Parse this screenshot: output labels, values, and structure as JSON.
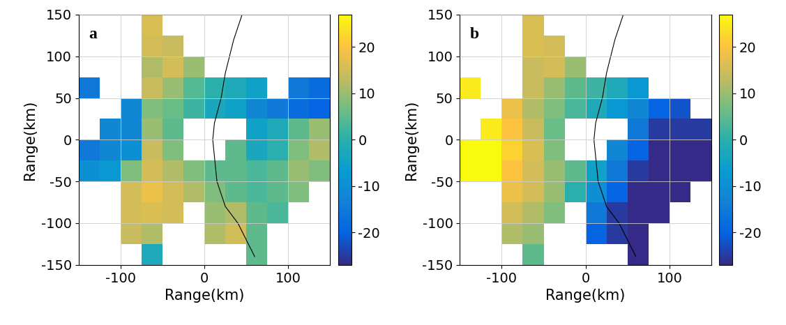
{
  "chart_data": [
    {
      "type": "heatmap",
      "title": "a",
      "xlabel": "Range(km)",
      "ylabel": "Range(km)",
      "xlim": [
        -150,
        150
      ],
      "xticks": [
        -100,
        0,
        100
      ],
      "ylim": [
        -150,
        150
      ],
      "yticks": [
        -150,
        -100,
        -50,
        0,
        50,
        100,
        150
      ],
      "grid": true,
      "x_edges": [
        -150,
        -125,
        -100,
        -75,
        -50,
        -25,
        0,
        25,
        50,
        75,
        100,
        125,
        150
      ],
      "y_edges": [
        150,
        125,
        100,
        75,
        50,
        25,
        0,
        -25,
        -50,
        -75,
        -100,
        -125,
        -150
      ],
      "cells": [
        [
          null,
          null,
          null,
          16,
          null,
          null,
          null,
          null,
          null,
          null,
          null,
          null
        ],
        [
          null,
          null,
          null,
          15,
          14,
          null,
          null,
          null,
          null,
          null,
          null,
          null
        ],
        [
          null,
          null,
          null,
          12,
          15,
          10,
          null,
          null,
          null,
          null,
          null,
          null
        ],
        [
          -15,
          null,
          null,
          14,
          10,
          4,
          0,
          -2,
          -5,
          null,
          -15,
          -18
        ],
        [
          null,
          null,
          -12,
          8,
          6,
          2,
          -3,
          -5,
          -12,
          -15,
          -18,
          -20
        ],
        [
          null,
          -12,
          -12,
          10,
          5,
          null,
          null,
          null,
          -5,
          -2,
          5,
          10
        ],
        [
          -15,
          -12,
          -10,
          14,
          8,
          null,
          null,
          5,
          -3,
          0,
          8,
          12
        ],
        [
          -10,
          -8,
          8,
          15,
          12,
          8,
          5,
          5,
          3,
          5,
          10,
          8
        ],
        [
          null,
          null,
          15,
          18,
          15,
          12,
          8,
          5,
          3,
          5,
          8,
          null
        ],
        [
          null,
          null,
          15,
          16,
          15,
          null,
          10,
          12,
          5,
          3,
          null,
          null
        ],
        [
          null,
          null,
          14,
          12,
          null,
          null,
          12,
          15,
          5,
          null,
          null,
          null
        ],
        [
          null,
          null,
          null,
          -2,
          null,
          null,
          null,
          null,
          5,
          null,
          null,
          null
        ]
      ],
      "colorbar": {
        "range": [
          -27,
          27
        ],
        "ticks": [
          -20,
          -10,
          0,
          10,
          20
        ]
      },
      "coastline": {
        "x": [
          45,
          35,
          25,
          20,
          12,
          10,
          12,
          15,
          25,
          40,
          50,
          60
        ],
        "y": [
          150,
          120,
          80,
          50,
          20,
          0,
          -20,
          -50,
          -80,
          -100,
          -120,
          -140
        ]
      }
    },
    {
      "type": "heatmap",
      "title": "b",
      "xlabel": "Range(km)",
      "ylabel": "Range(km)",
      "xlim": [
        -150,
        150
      ],
      "xticks": [
        -100,
        0,
        100
      ],
      "ylim": [
        -150,
        150
      ],
      "yticks": [
        -150,
        -100,
        -50,
        0,
        50,
        100,
        150
      ],
      "grid": true,
      "x_edges": [
        -150,
        -125,
        -100,
        -75,
        -50,
        -25,
        0,
        25,
        50,
        75,
        100,
        125,
        150
      ],
      "y_edges": [
        150,
        125,
        100,
        75,
        50,
        25,
        0,
        -25,
        -50,
        -75,
        -100,
        -125,
        -150
      ],
      "cells": [
        [
          null,
          null,
          null,
          16,
          null,
          null,
          null,
          null,
          null,
          null,
          null,
          null
        ],
        [
          null,
          null,
          null,
          16,
          15,
          null,
          null,
          null,
          null,
          null,
          null,
          null
        ],
        [
          null,
          null,
          null,
          14,
          15,
          10,
          null,
          null,
          null,
          null,
          null,
          null
        ],
        [
          25,
          null,
          null,
          14,
          10,
          5,
          2,
          -2,
          -8,
          null,
          null,
          null
        ],
        [
          null,
          null,
          18,
          12,
          8,
          3,
          -2,
          -8,
          -12,
          -20,
          -22,
          null
        ],
        [
          null,
          25,
          20,
          14,
          6,
          null,
          null,
          null,
          -15,
          -25,
          -25,
          -25
        ],
        [
          27,
          27,
          22,
          16,
          8,
          null,
          null,
          -12,
          -20,
          -27,
          -27,
          -27
        ],
        [
          27,
          27,
          20,
          15,
          10,
          5,
          -5,
          -15,
          -25,
          -27,
          -27,
          -27
        ],
        [
          null,
          null,
          18,
          15,
          10,
          0,
          -10,
          -20,
          -27,
          -27,
          -27,
          null
        ],
        [
          null,
          null,
          15,
          12,
          8,
          null,
          -15,
          -25,
          -27,
          -27,
          null,
          null
        ],
        [
          null,
          null,
          12,
          10,
          null,
          null,
          -20,
          -25,
          -27,
          null,
          null,
          null
        ],
        [
          null,
          null,
          null,
          5,
          null,
          null,
          null,
          null,
          -27,
          null,
          null,
          null
        ]
      ],
      "colorbar": {
        "range": [
          -27,
          27
        ],
        "ticks": [
          -20,
          -10,
          0,
          10,
          20
        ]
      },
      "coastline": {
        "x": [
          45,
          35,
          25,
          20,
          12,
          10,
          12,
          15,
          25,
          40,
          50,
          60
        ],
        "y": [
          150,
          120,
          80,
          50,
          20,
          0,
          -20,
          -50,
          -80,
          -100,
          -120,
          -140
        ]
      }
    }
  ]
}
